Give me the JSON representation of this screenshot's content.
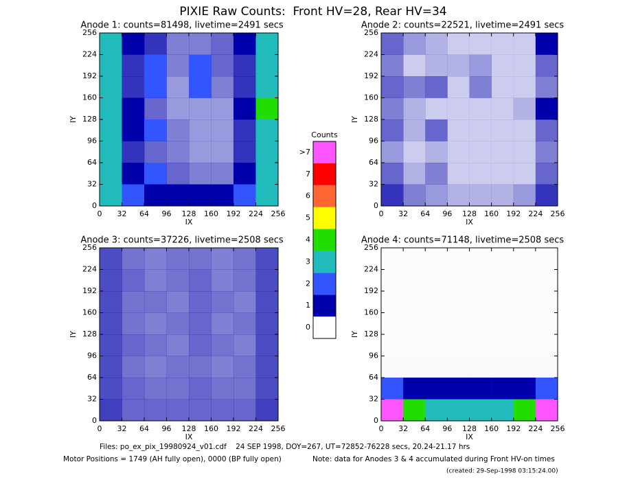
{
  "title": "PIXIE Raw Counts:  Front HV=28, Rear HV=34",
  "colorbar": {
    "title": "Counts",
    "ticks": [
      0,
      1,
      2,
      3,
      4,
      5,
      6,
      7,
      {
        "value": 8,
        "label": ">7"
      }
    ],
    "colors": [
      "#ffffff",
      "#0000aa",
      "#3355ff",
      "#22bbbb",
      "#22dd00",
      "#ffff00",
      "#ff6633",
      "#ff0000",
      "#ff55ff"
    ]
  },
  "chart_data": [
    {
      "type": "heatmap",
      "title": "Anode 1: counts=81498, livetime=2491 secs",
      "xlabel": "IX",
      "ylabel": "IY",
      "xlim": [
        0,
        256
      ],
      "ylim": [
        0,
        256
      ],
      "xticks": [
        0,
        32,
        64,
        96,
        128,
        160,
        192,
        224,
        256
      ],
      "yticks": [
        0,
        32,
        64,
        96,
        128,
        160,
        192,
        224,
        256
      ],
      "grid": [
        [
          3,
          1,
          0.8,
          0.5,
          0.5,
          0.6,
          1,
          3
        ],
        [
          3,
          0.8,
          1.2,
          0.5,
          1.5,
          0.6,
          0.8,
          3
        ],
        [
          3,
          0.8,
          1.2,
          0.4,
          1.5,
          0.5,
          0.8,
          3
        ],
        [
          3,
          1,
          0.6,
          0.4,
          0.4,
          0.4,
          1,
          4
        ],
        [
          3,
          1,
          1.2,
          0.5,
          0.4,
          0.4,
          0.8,
          3
        ],
        [
          3,
          0.8,
          0.6,
          0.5,
          0.4,
          0.4,
          0.8,
          3
        ],
        [
          3,
          1,
          1.2,
          0.6,
          0.5,
          0.5,
          1,
          3
        ],
        [
          3,
          1.5,
          1,
          1,
          1,
          1,
          1.5,
          3
        ]
      ]
    },
    {
      "type": "heatmap",
      "title": "Anode 2: counts=22521, livetime=2491 secs",
      "xlabel": "IX",
      "ylabel": "IY",
      "xlim": [
        0,
        256
      ],
      "ylim": [
        0,
        256
      ],
      "xticks": [
        0,
        32,
        64,
        96,
        128,
        160,
        192,
        224,
        256
      ],
      "yticks": [
        0,
        32,
        64,
        96,
        128,
        160,
        192,
        224,
        256
      ],
      "grid": [
        [
          0.6,
          0.4,
          0.3,
          0.2,
          0.2,
          0.2,
          0.2,
          1
        ],
        [
          0.5,
          0.2,
          0.3,
          0.3,
          0.4,
          0.2,
          0.2,
          0.6
        ],
        [
          0.6,
          0.5,
          0.6,
          0.2,
          0.5,
          0.2,
          0.2,
          0.5
        ],
        [
          0.5,
          0.3,
          0.2,
          0.2,
          0.2,
          0.2,
          0.3,
          1
        ],
        [
          0.6,
          0.3,
          0.6,
          0.2,
          0.2,
          0.2,
          0.2,
          0.6
        ],
        [
          0.4,
          0.2,
          0.3,
          0.2,
          0.2,
          0.2,
          0.2,
          0.5
        ],
        [
          0.6,
          0.3,
          0.5,
          0.2,
          0.2,
          0.2,
          0.2,
          0.6
        ],
        [
          0.8,
          0.5,
          0.4,
          0.3,
          0.3,
          0.3,
          0.4,
          0.8
        ]
      ]
    },
    {
      "type": "heatmap",
      "title": "Anode 3: counts=37226, livetime=2508 secs",
      "xlabel": "IX",
      "ylabel": "IY",
      "xlim": [
        0,
        256
      ],
      "ylim": [
        0,
        256
      ],
      "xticks": [
        0,
        32,
        64,
        96,
        128,
        160,
        192,
        224,
        256
      ],
      "yticks": [
        0,
        32,
        64,
        96,
        128,
        160,
        192,
        224,
        256
      ],
      "grid": [
        [
          0.7,
          0.55,
          0.5,
          0.55,
          0.55,
          0.5,
          0.55,
          0.7
        ],
        [
          0.7,
          0.6,
          0.5,
          0.55,
          0.6,
          0.5,
          0.55,
          0.7
        ],
        [
          0.7,
          0.55,
          0.55,
          0.5,
          0.6,
          0.55,
          0.5,
          0.7
        ],
        [
          0.7,
          0.55,
          0.5,
          0.55,
          0.6,
          0.5,
          0.55,
          0.7
        ],
        [
          0.7,
          0.6,
          0.55,
          0.5,
          0.6,
          0.55,
          0.5,
          0.7
        ],
        [
          0.7,
          0.55,
          0.5,
          0.55,
          0.55,
          0.5,
          0.55,
          0.7
        ],
        [
          0.7,
          0.6,
          0.55,
          0.55,
          0.6,
          0.55,
          0.55,
          0.7
        ],
        [
          0.75,
          0.6,
          0.6,
          0.6,
          0.6,
          0.6,
          0.6,
          0.75
        ]
      ]
    },
    {
      "type": "heatmap",
      "title": "Anode 4: counts=71148, livetime=2508 secs",
      "xlabel": "IX",
      "ylabel": "IY",
      "xlim": [
        0,
        256
      ],
      "ylim": [
        0,
        256
      ],
      "xticks": [
        0,
        32,
        64,
        96,
        128,
        160,
        192,
        224,
        256
      ],
      "yticks": [
        0,
        32,
        64,
        96,
        128,
        160,
        192,
        224,
        256
      ],
      "grid": [
        [
          0.01,
          0.01,
          0.01,
          0.01,
          0.01,
          0.01,
          0.01,
          0.01
        ],
        [
          0.01,
          0.01,
          0.01,
          0.01,
          0.01,
          0.01,
          0.01,
          0.01
        ],
        [
          0.01,
          0.01,
          0.01,
          0.01,
          0.01,
          0.01,
          0.01,
          0.01
        ],
        [
          0.01,
          0.01,
          0.01,
          0.01,
          0.01,
          0.01,
          0.01,
          0.01
        ],
        [
          0.01,
          0.01,
          0.01,
          0.01,
          0.01,
          0.01,
          0.01,
          0.01
        ],
        [
          0.02,
          0.02,
          0.02,
          0.02,
          0.02,
          0.02,
          0.02,
          0.02
        ],
        [
          1.5,
          1,
          1,
          1,
          1,
          1,
          1,
          1.5
        ],
        [
          8,
          4,
          3,
          3,
          3,
          3,
          4,
          8
        ]
      ]
    }
  ],
  "footer": {
    "files": "Files: po_ex_pix_19980924_v01.cdf    24 SEP 1998, DOY=267, UT=72852-76228 secs, 20.24-21.17 hrs",
    "motor": "Motor Positions = 1749 (AH fully open), 0000 (BP fully open)",
    "note": "Note: data for Anodes 3 & 4 accumulated during Front HV-on times",
    "created": "(created: 29-Sep-1998 03:15:24.00)"
  }
}
